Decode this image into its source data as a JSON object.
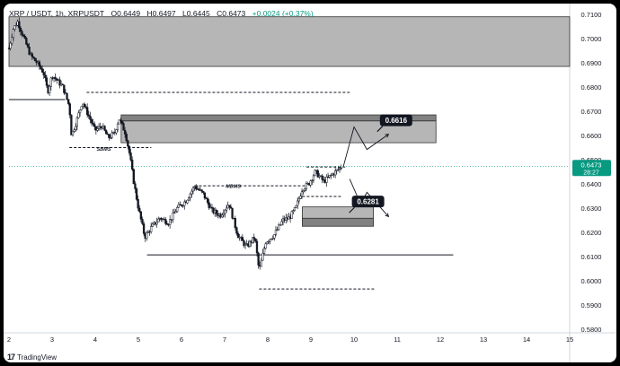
{
  "header": {
    "symbol": "XRP / USDT, 1h, XRPUSDT",
    "open": "O0.6449",
    "high": "H0.6497",
    "low": "L0.6445",
    "close": "C0.6473",
    "change": "+0.0024 (+0.37%)"
  },
  "price_badge": {
    "price": "0.6473",
    "countdown": "28:27",
    "color": "#089981"
  },
  "footer": {
    "brand": "TradingView"
  },
  "colors": {
    "zone_gray": "#9e9e9e",
    "zone_dark": "#7a7a7a",
    "label_bg": "#131722",
    "candle": "#131722"
  },
  "chart_data": {
    "type": "candlestick",
    "x_ticks": [
      "2",
      "3",
      "4",
      "5",
      "6",
      "7",
      "8",
      "9",
      "10",
      "11",
      "12",
      "13",
      "14",
      "15"
    ],
    "y_ticks": [
      "0.7100",
      "0.7000",
      "0.6900",
      "0.6800",
      "0.6700",
      "0.6600",
      "0.6500",
      "0.6400",
      "0.6300",
      "0.6200",
      "0.6100",
      "0.6000",
      "0.5900",
      "0.5800"
    ],
    "ylim": [
      0.58,
      0.71
    ],
    "xlim": [
      2,
      15
    ],
    "price_path": [
      [
        2.0,
        0.696
      ],
      [
        2.1,
        0.704
      ],
      [
        2.2,
        0.707
      ],
      [
        2.35,
        0.7
      ],
      [
        2.5,
        0.693
      ],
      [
        2.65,
        0.69
      ],
      [
        2.8,
        0.686
      ],
      [
        2.9,
        0.678
      ],
      [
        3.0,
        0.685
      ],
      [
        3.1,
        0.683
      ],
      [
        3.25,
        0.68
      ],
      [
        3.4,
        0.672
      ],
      [
        3.45,
        0.66
      ],
      [
        3.55,
        0.665
      ],
      [
        3.7,
        0.674
      ],
      [
        3.85,
        0.668
      ],
      [
        4.0,
        0.662
      ],
      [
        4.15,
        0.664
      ],
      [
        4.3,
        0.659
      ],
      [
        4.45,
        0.661
      ],
      [
        4.55,
        0.667
      ],
      [
        4.7,
        0.661
      ],
      [
        4.8,
        0.652
      ],
      [
        4.9,
        0.64
      ],
      [
        5.0,
        0.63
      ],
      [
        5.15,
        0.618
      ],
      [
        5.3,
        0.622
      ],
      [
        5.5,
        0.626
      ],
      [
        5.7,
        0.624
      ],
      [
        5.9,
        0.63
      ],
      [
        6.1,
        0.633
      ],
      [
        6.3,
        0.639
      ],
      [
        6.5,
        0.636
      ],
      [
        6.7,
        0.629
      ],
      [
        6.9,
        0.627
      ],
      [
        7.1,
        0.632
      ],
      [
        7.3,
        0.619
      ],
      [
        7.5,
        0.614
      ],
      [
        7.7,
        0.618
      ],
      [
        7.8,
        0.604
      ],
      [
        7.95,
        0.616
      ],
      [
        8.15,
        0.619
      ],
      [
        8.35,
        0.625
      ],
      [
        8.5,
        0.626
      ],
      [
        8.65,
        0.63
      ],
      [
        8.8,
        0.638
      ],
      [
        8.95,
        0.64
      ],
      [
        9.1,
        0.645
      ],
      [
        9.3,
        0.641
      ],
      [
        9.5,
        0.644
      ],
      [
        9.7,
        0.647
      ]
    ],
    "zones": [
      {
        "x1": 2.0,
        "x2": 15.0,
        "y_top": 0.709,
        "y_bottom": 0.6885,
        "style": "light"
      },
      {
        "x1": 4.6,
        "x2": 11.9,
        "y_top": 0.6685,
        "y_bottom": 0.666,
        "style": "dark"
      },
      {
        "x1": 4.6,
        "x2": 11.9,
        "y_top": 0.666,
        "y_bottom": 0.657,
        "style": "light"
      },
      {
        "x1": 8.8,
        "x2": 10.45,
        "y_top": 0.6305,
        "y_bottom": 0.6258,
        "style": "light"
      },
      {
        "x1": 8.8,
        "x2": 10.45,
        "y_top": 0.6258,
        "y_bottom": 0.6225,
        "style": "dark"
      }
    ],
    "price_labels": [
      {
        "text": "0.6616",
        "x": 10.6,
        "y": 0.6616
      },
      {
        "text": "0.6281",
        "x": 9.95,
        "y": 0.6281
      }
    ],
    "annotations": [
      {
        "text": "SBMS",
        "x": 4.2,
        "y": 0.6537
      },
      {
        "text": "MBMS",
        "x": 7.2,
        "y": 0.6383
      }
    ],
    "solid_levels": [
      {
        "x1": 2.0,
        "x2": 3.3,
        "y": 0.6748
      },
      {
        "x1": 5.2,
        "x2": 12.3,
        "y": 0.6107
      }
    ],
    "dashed_levels": [
      {
        "x1": 3.8,
        "x2": 9.9,
        "y": 0.6778
      },
      {
        "x1": 3.4,
        "x2": 5.3,
        "y": 0.655
      },
      {
        "x1": 6.3,
        "x2": 8.9,
        "y": 0.6392
      },
      {
        "x1": 7.8,
        "x2": 10.5,
        "y": 0.5966
      },
      {
        "x1": 8.8,
        "x2": 9.7,
        "y": 0.6348
      },
      {
        "x1": 8.9,
        "x2": 9.8,
        "y": 0.647
      }
    ],
    "projection_up": [
      [
        9.75,
        0.647
      ],
      [
        10.0,
        0.6635
      ],
      [
        10.3,
        0.6542
      ],
      [
        10.8,
        0.6605
      ]
    ],
    "projection_down": [
      [
        9.9,
        0.642
      ],
      [
        10.15,
        0.6318
      ],
      [
        10.3,
        0.6365
      ],
      [
        10.8,
        0.6265
      ]
    ]
  }
}
